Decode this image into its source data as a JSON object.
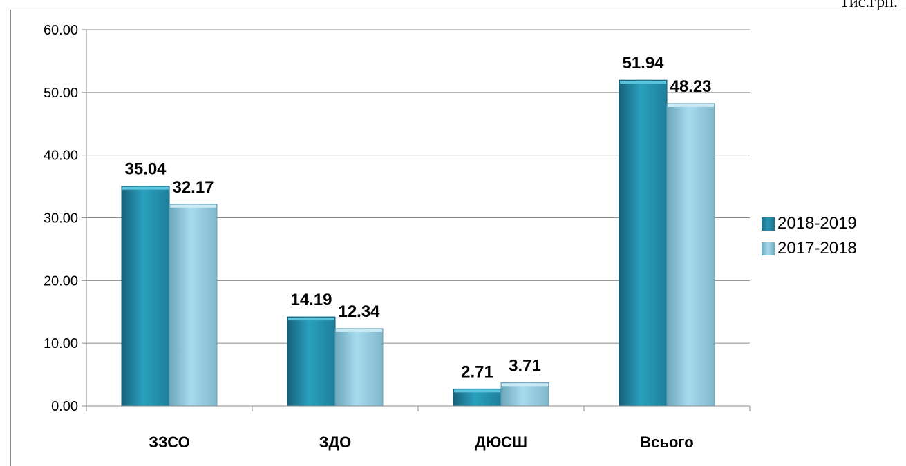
{
  "unit_note": "Тис.грн.",
  "colors": {
    "series_1": "#2a97b4",
    "series_2": "#8fc9dd",
    "grid": "#8c8c8c",
    "axis": "#8c8c8c"
  },
  "chart_data": {
    "type": "bar",
    "title": "",
    "xlabel": "",
    "ylabel": "",
    "categories": [
      "ЗЗСО",
      "ЗДО",
      "ДЮСШ",
      "Всього"
    ],
    "series": [
      {
        "name": "2018-2019",
        "values": [
          35.04,
          14.19,
          2.71,
          51.94
        ]
      },
      {
        "name": "2017-2018",
        "values": [
          32.17,
          12.34,
          3.71,
          48.23
        ]
      }
    ],
    "data_labels": [
      [
        "35.04",
        "14.19",
        "2.71",
        "51.94"
      ],
      [
        "32.17",
        "12.34",
        "3.71",
        "48.23"
      ]
    ],
    "ylim": [
      0,
      60
    ],
    "yticks": [
      "0.00",
      "10.00",
      "20.00",
      "30.00",
      "40.00",
      "50.00",
      "60.00"
    ],
    "grid": true,
    "legend_position": "right"
  }
}
